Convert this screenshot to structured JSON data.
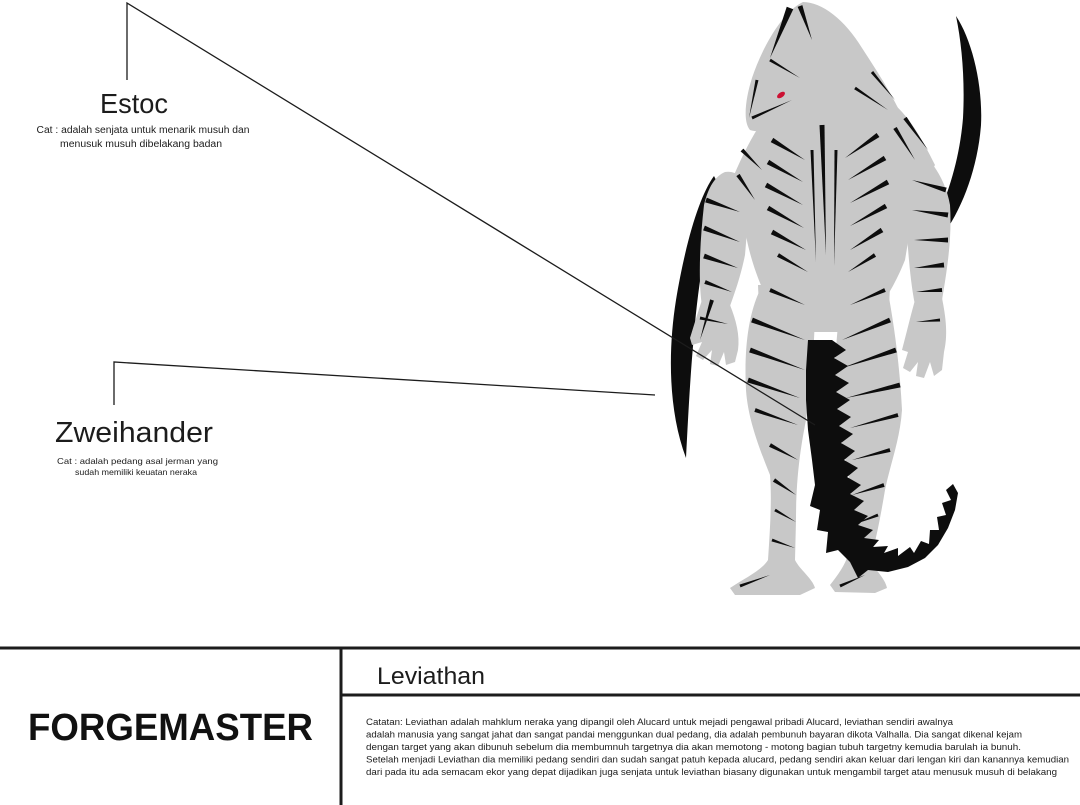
{
  "callouts": {
    "estoc": {
      "title": "Estoc",
      "note_lines": [
        "Cat : adalah senjata untuk menarik musuh dan",
        "menusuk musuh dibelakang badan"
      ]
    },
    "zweihander": {
      "title": "Zweihander",
      "note_lines": [
        "Cat : adalah pedang asal jerman yang",
        "sudah memiliki keuatan neraka"
      ]
    }
  },
  "title_block": {
    "brand": "FORGEMASTER",
    "character_name": "Leviathan",
    "notes_lines": [
      "Catatan: Leviathan adalah mahklum neraka yang dipangil oleh Alucard untuk mejadi pengawal pribadi Alucard, leviathan sendiri awalnya",
      "adalah manusia yang sangat jahat dan sangat pandai menggunkan dual pedang, dia adalah pembunuh bayaran dikota Valhalla. Dia sangat dikenal kejam",
      "dengan target yang akan dibunuh sebelum dia membumnuh targetnya dia akan memotong - motong bagian tubuh targetny kemudia barulah ia bunuh.",
      "Setelah menjadi Leviathan dia memiliki pedang sendiri dan sudah sangat patuh kepada alucard, pedang sendiri akan keluar dari lengan kiri dan kanannya kemudian",
      "dari pada itu ada semacam ekor yang depat dijadikan juga senjata untuk leviathan biasany digunakan untuk mengambil target atau menusuk musuh di belakang"
    ]
  },
  "colors": {
    "background": "#ffffff",
    "skin": "#c8c8c8",
    "markings": "#0d0d0d",
    "eye": "#cc1133",
    "ink": "#1c1c1c"
  }
}
